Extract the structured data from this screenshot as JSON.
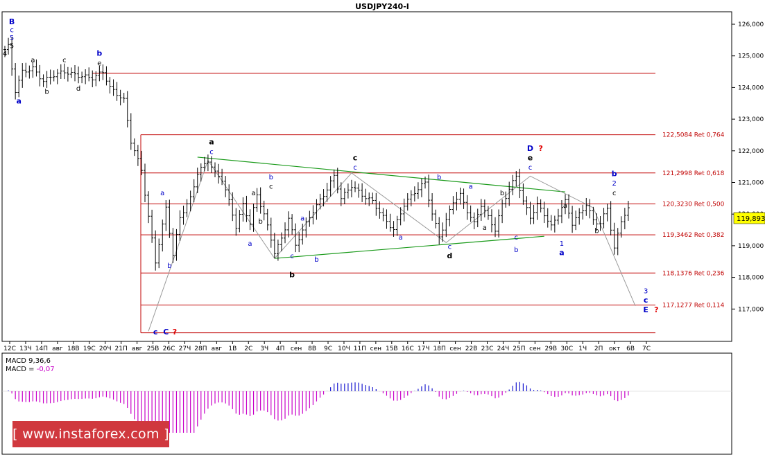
{
  "chart_data": {
    "type": "candlestick",
    "title": "USDJPY240-I",
    "last_price": "119,893",
    "y_tick_labels": [
      "126,000",
      "125,000",
      "124,000",
      "123,000",
      "122,000",
      "121,000",
      "120,000",
      "119,000",
      "118,000",
      "117,000"
    ],
    "ylim": [
      116.2,
      126.4
    ],
    "x_tick_labels": [
      "12С",
      "13Ч",
      "14П",
      "авг",
      "18В",
      "19С",
      "20Ч",
      "21П",
      "авг",
      "25В",
      "26С",
      "27Ч",
      "28П",
      "авг",
      "1В",
      "2С",
      "3Ч",
      "4П",
      "сен",
      "8В",
      "9С",
      "10Ч",
      "11П",
      "сен",
      "15В",
      "16С",
      "17Ч",
      "18П",
      "сен",
      "22В",
      "23С",
      "24Ч",
      "25П",
      "сен",
      "29В",
      "30С",
      "1Ч",
      "2П",
      "окт",
      "6В",
      "7С"
    ],
    "price_path": [
      [
        0,
        125.2
      ],
      [
        1,
        125.3
      ],
      [
        3,
        123.9
      ],
      [
        5,
        124.5
      ],
      [
        8,
        124.6
      ],
      [
        11,
        124.2
      ],
      [
        14,
        124.4
      ],
      [
        17,
        124.5
      ],
      [
        20,
        124.4
      ],
      [
        25,
        124.3
      ],
      [
        28,
        124.5
      ],
      [
        30,
        124.0
      ],
      [
        34,
        123.6
      ],
      [
        36,
        122.3
      ],
      [
        39,
        121.4
      ],
      [
        41,
        119.9
      ],
      [
        43,
        118.5
      ],
      [
        46,
        120.2
      ],
      [
        48,
        118.7
      ],
      [
        50,
        119.9
      ],
      [
        53,
        120.5
      ],
      [
        55,
        121.3
      ],
      [
        58,
        121.7
      ],
      [
        60,
        121.3
      ],
      [
        62,
        121.1
      ],
      [
        64,
        120.4
      ],
      [
        66,
        119.6
      ],
      [
        68,
        120.3
      ],
      [
        70,
        119.7
      ],
      [
        72,
        120.6
      ],
      [
        74,
        120.0
      ],
      [
        77,
        118.8
      ],
      [
        79,
        119.2
      ],
      [
        81,
        119.9
      ],
      [
        83,
        119.0
      ],
      [
        85,
        119.5
      ],
      [
        88,
        120.1
      ],
      [
        91,
        120.6
      ],
      [
        94,
        121.2
      ],
      [
        96,
        120.5
      ],
      [
        99,
        120.9
      ],
      [
        102,
        120.6
      ],
      [
        105,
        120.4
      ],
      [
        108,
        119.9
      ],
      [
        111,
        119.5
      ],
      [
        114,
        120.3
      ],
      [
        117,
        120.7
      ],
      [
        120,
        121.0
      ],
      [
        122,
        120.0
      ],
      [
        124,
        119.3
      ],
      [
        126,
        119.8
      ],
      [
        128,
        120.4
      ],
      [
        130,
        120.6
      ],
      [
        132,
        120.1
      ],
      [
        134,
        119.7
      ],
      [
        136,
        120.3
      ],
      [
        138,
        119.9
      ],
      [
        140,
        119.5
      ],
      [
        142,
        120.3
      ],
      [
        144,
        120.8
      ],
      [
        146,
        121.2
      ],
      [
        148,
        120.4
      ],
      [
        150,
        119.9
      ],
      [
        152,
        120.3
      ],
      [
        154,
        120.0
      ],
      [
        156,
        119.6
      ],
      [
        158,
        120.0
      ],
      [
        160,
        120.4
      ],
      [
        162,
        119.7
      ],
      [
        164,
        120.0
      ],
      [
        166,
        120.3
      ],
      [
        168,
        119.8
      ],
      [
        170,
        119.7
      ],
      [
        172,
        120.2
      ],
      [
        174,
        118.9
      ],
      [
        176,
        119.8
      ],
      [
        178,
        120.2
      ]
    ],
    "horizontal_levels": [
      {
        "price": 124.45,
        "label": ""
      },
      {
        "price": 122.5084,
        "label": "122,5084 Ret 0,764"
      },
      {
        "price": 121.2998,
        "label": "121,2998 Ret 0,618"
      },
      {
        "price": 120.323,
        "label": "120,3230 Ret 0,500"
      },
      {
        "price": 119.3462,
        "label": "119,3462 Ret 0,382"
      },
      {
        "price": 118.1376,
        "label": "118,1376 Ret 0,236"
      },
      {
        "price": 117.1277,
        "label": "117,1277 Ret 0,114"
      },
      {
        "price": 116.25,
        "label": ""
      }
    ],
    "trend_lines": [
      {
        "from": [
          55,
          121.8
        ],
        "to": [
          160,
          120.7
        ]
      },
      {
        "from": [
          77,
          118.6
        ],
        "to": [
          154,
          119.3
        ]
      }
    ],
    "wave_polyline": [
      [
        41,
        116.3
      ],
      [
        58,
        121.7
      ],
      [
        77,
        118.6
      ],
      [
        99,
        121.3
      ],
      [
        126,
        119.1
      ],
      [
        150,
        121.2
      ],
      [
        168,
        120.2
      ],
      [
        180,
        117.1
      ]
    ],
    "wave_labels": [
      {
        "t": "B",
        "x": 2,
        "p": 126.0,
        "c": "#0000c8",
        "b": true
      },
      {
        "t": "c",
        "x": 2,
        "p": 125.75,
        "c": "#0000c8",
        "b": false
      },
      {
        "t": "5",
        "x": 2,
        "p": 125.5,
        "c": "#0000c8",
        "b": false
      },
      {
        "t": "5",
        "x": 2,
        "p": 125.25,
        "c": "#000",
        "b": false
      },
      {
        "t": "4",
        "x": 0,
        "p": 125.0,
        "c": "#000",
        "b": false
      },
      {
        "t": "a",
        "x": 4,
        "p": 123.5,
        "c": "#0000c8",
        "b": true
      },
      {
        "t": "a",
        "x": 8,
        "p": 124.8,
        "c": "#000",
        "b": false
      },
      {
        "t": "b",
        "x": 12,
        "p": 123.8,
        "c": "#000",
        "b": false
      },
      {
        "t": "c",
        "x": 17,
        "p": 124.8,
        "c": "#000",
        "b": false
      },
      {
        "t": "d",
        "x": 21,
        "p": 123.9,
        "c": "#000",
        "b": false
      },
      {
        "t": "b",
        "x": 27,
        "p": 125.0,
        "c": "#0000c8",
        "b": true
      },
      {
        "t": "e",
        "x": 27,
        "p": 124.7,
        "c": "#000",
        "b": false
      },
      {
        "t": "a",
        "x": 45,
        "p": 120.6,
        "c": "#0000c8",
        "b": false
      },
      {
        "t": "b",
        "x": 47,
        "p": 118.3,
        "c": "#0000c8",
        "b": false
      },
      {
        "t": "a",
        "x": 59,
        "p": 122.2,
        "c": "#000",
        "b": true
      },
      {
        "t": "c",
        "x": 59,
        "p": 121.9,
        "c": "#0000c8",
        "b": false
      },
      {
        "t": "a",
        "x": 71,
        "p": 120.6,
        "c": "#000",
        "b": false
      },
      {
        "t": "a",
        "x": 70,
        "p": 119.0,
        "c": "#0000c8",
        "b": false
      },
      {
        "t": "b",
        "x": 76,
        "p": 121.1,
        "c": "#0000c8",
        "b": false
      },
      {
        "t": "c",
        "x": 76,
        "p": 120.8,
        "c": "#000",
        "b": false
      },
      {
        "t": "b",
        "x": 73,
        "p": 119.7,
        "c": "#000",
        "b": false
      },
      {
        "t": "c",
        "x": 82,
        "p": 118.6,
        "c": "#0000c8",
        "b": false
      },
      {
        "t": "b",
        "x": 82,
        "p": 118.0,
        "c": "#000",
        "b": true
      },
      {
        "t": "a",
        "x": 85,
        "p": 119.8,
        "c": "#0000c8",
        "b": false
      },
      {
        "t": "b",
        "x": 89,
        "p": 118.5,
        "c": "#0000c8",
        "b": false
      },
      {
        "t": "c",
        "x": 100,
        "p": 121.7,
        "c": "#000",
        "b": true
      },
      {
        "t": "c",
        "x": 100,
        "p": 121.4,
        "c": "#0000c8",
        "b": false
      },
      {
        "t": "a",
        "x": 113,
        "p": 119.2,
        "c": "#0000c8",
        "b": false
      },
      {
        "t": "b",
        "x": 124,
        "p": 121.1,
        "c": "#0000c8",
        "b": false
      },
      {
        "t": "c",
        "x": 127,
        "p": 118.9,
        "c": "#0000c8",
        "b": false
      },
      {
        "t": "d",
        "x": 127,
        "p": 118.6,
        "c": "#000",
        "b": true
      },
      {
        "t": "a",
        "x": 133,
        "p": 120.8,
        "c": "#0000c8",
        "b": false
      },
      {
        "t": "a",
        "x": 137,
        "p": 119.5,
        "c": "#000",
        "b": false
      },
      {
        "t": "b",
        "x": 142,
        "p": 120.6,
        "c": "#000",
        "b": false
      },
      {
        "t": "c",
        "x": 146,
        "p": 119.2,
        "c": "#0000c8",
        "b": false
      },
      {
        "t": "b",
        "x": 146,
        "p": 118.8,
        "c": "#0000c8",
        "b": false
      },
      {
        "t": "D",
        "x": 150,
        "p": 122.0,
        "c": "#0000c8",
        "b": true
      },
      {
        "t": "?",
        "x": 153,
        "p": 122.0,
        "c": "#e00000",
        "b": true
      },
      {
        "t": "e",
        "x": 150,
        "p": 121.7,
        "c": "#000",
        "b": true
      },
      {
        "t": "c",
        "x": 150,
        "p": 121.4,
        "c": "#0000c8",
        "b": false
      },
      {
        "t": "a",
        "x": 160,
        "p": 120.2,
        "c": "#000",
        "b": false
      },
      {
        "t": "1",
        "x": 159,
        "p": 119.0,
        "c": "#0000c8",
        "b": false
      },
      {
        "t": "a",
        "x": 159,
        "p": 118.7,
        "c": "#0000c8",
        "b": true
      },
      {
        "t": "b",
        "x": 169,
        "p": 119.4,
        "c": "#000",
        "b": false
      },
      {
        "t": "b",
        "x": 174,
        "p": 121.2,
        "c": "#0000c8",
        "b": true
      },
      {
        "t": "2",
        "x": 174,
        "p": 120.9,
        "c": "#0000c8",
        "b": false
      },
      {
        "t": "c",
        "x": 174,
        "p": 120.6,
        "c": "#000",
        "b": false
      },
      {
        "t": "3",
        "x": 183,
        "p": 117.5,
        "c": "#0000c8",
        "b": false
      },
      {
        "t": "c",
        "x": 183,
        "p": 117.2,
        "c": "#0000c8",
        "b": true
      },
      {
        "t": "E",
        "x": 183,
        "p": 116.9,
        "c": "#0000c8",
        "b": true
      },
      {
        "t": "?",
        "x": 186,
        "p": 116.9,
        "c": "#e00000",
        "b": true
      },
      {
        "t": "c",
        "x": 43,
        "p": 116.2,
        "c": "#0000c8",
        "b": true
      },
      {
        "t": "C",
        "x": 46,
        "p": 116.2,
        "c": "#0000c8",
        "b": true
      },
      {
        "t": "?",
        "x": 48.5,
        "p": 116.2,
        "c": "#e00000",
        "b": true
      }
    ],
    "macd": {
      "label": "MACD 9,36,6",
      "value_label": "MACD = -0,07",
      "value_color": "#c800c8",
      "positive_color": "#1a1ad0",
      "negative_color": "#c800c8"
    }
  },
  "watermark": "[ www.instaforex.com ]"
}
